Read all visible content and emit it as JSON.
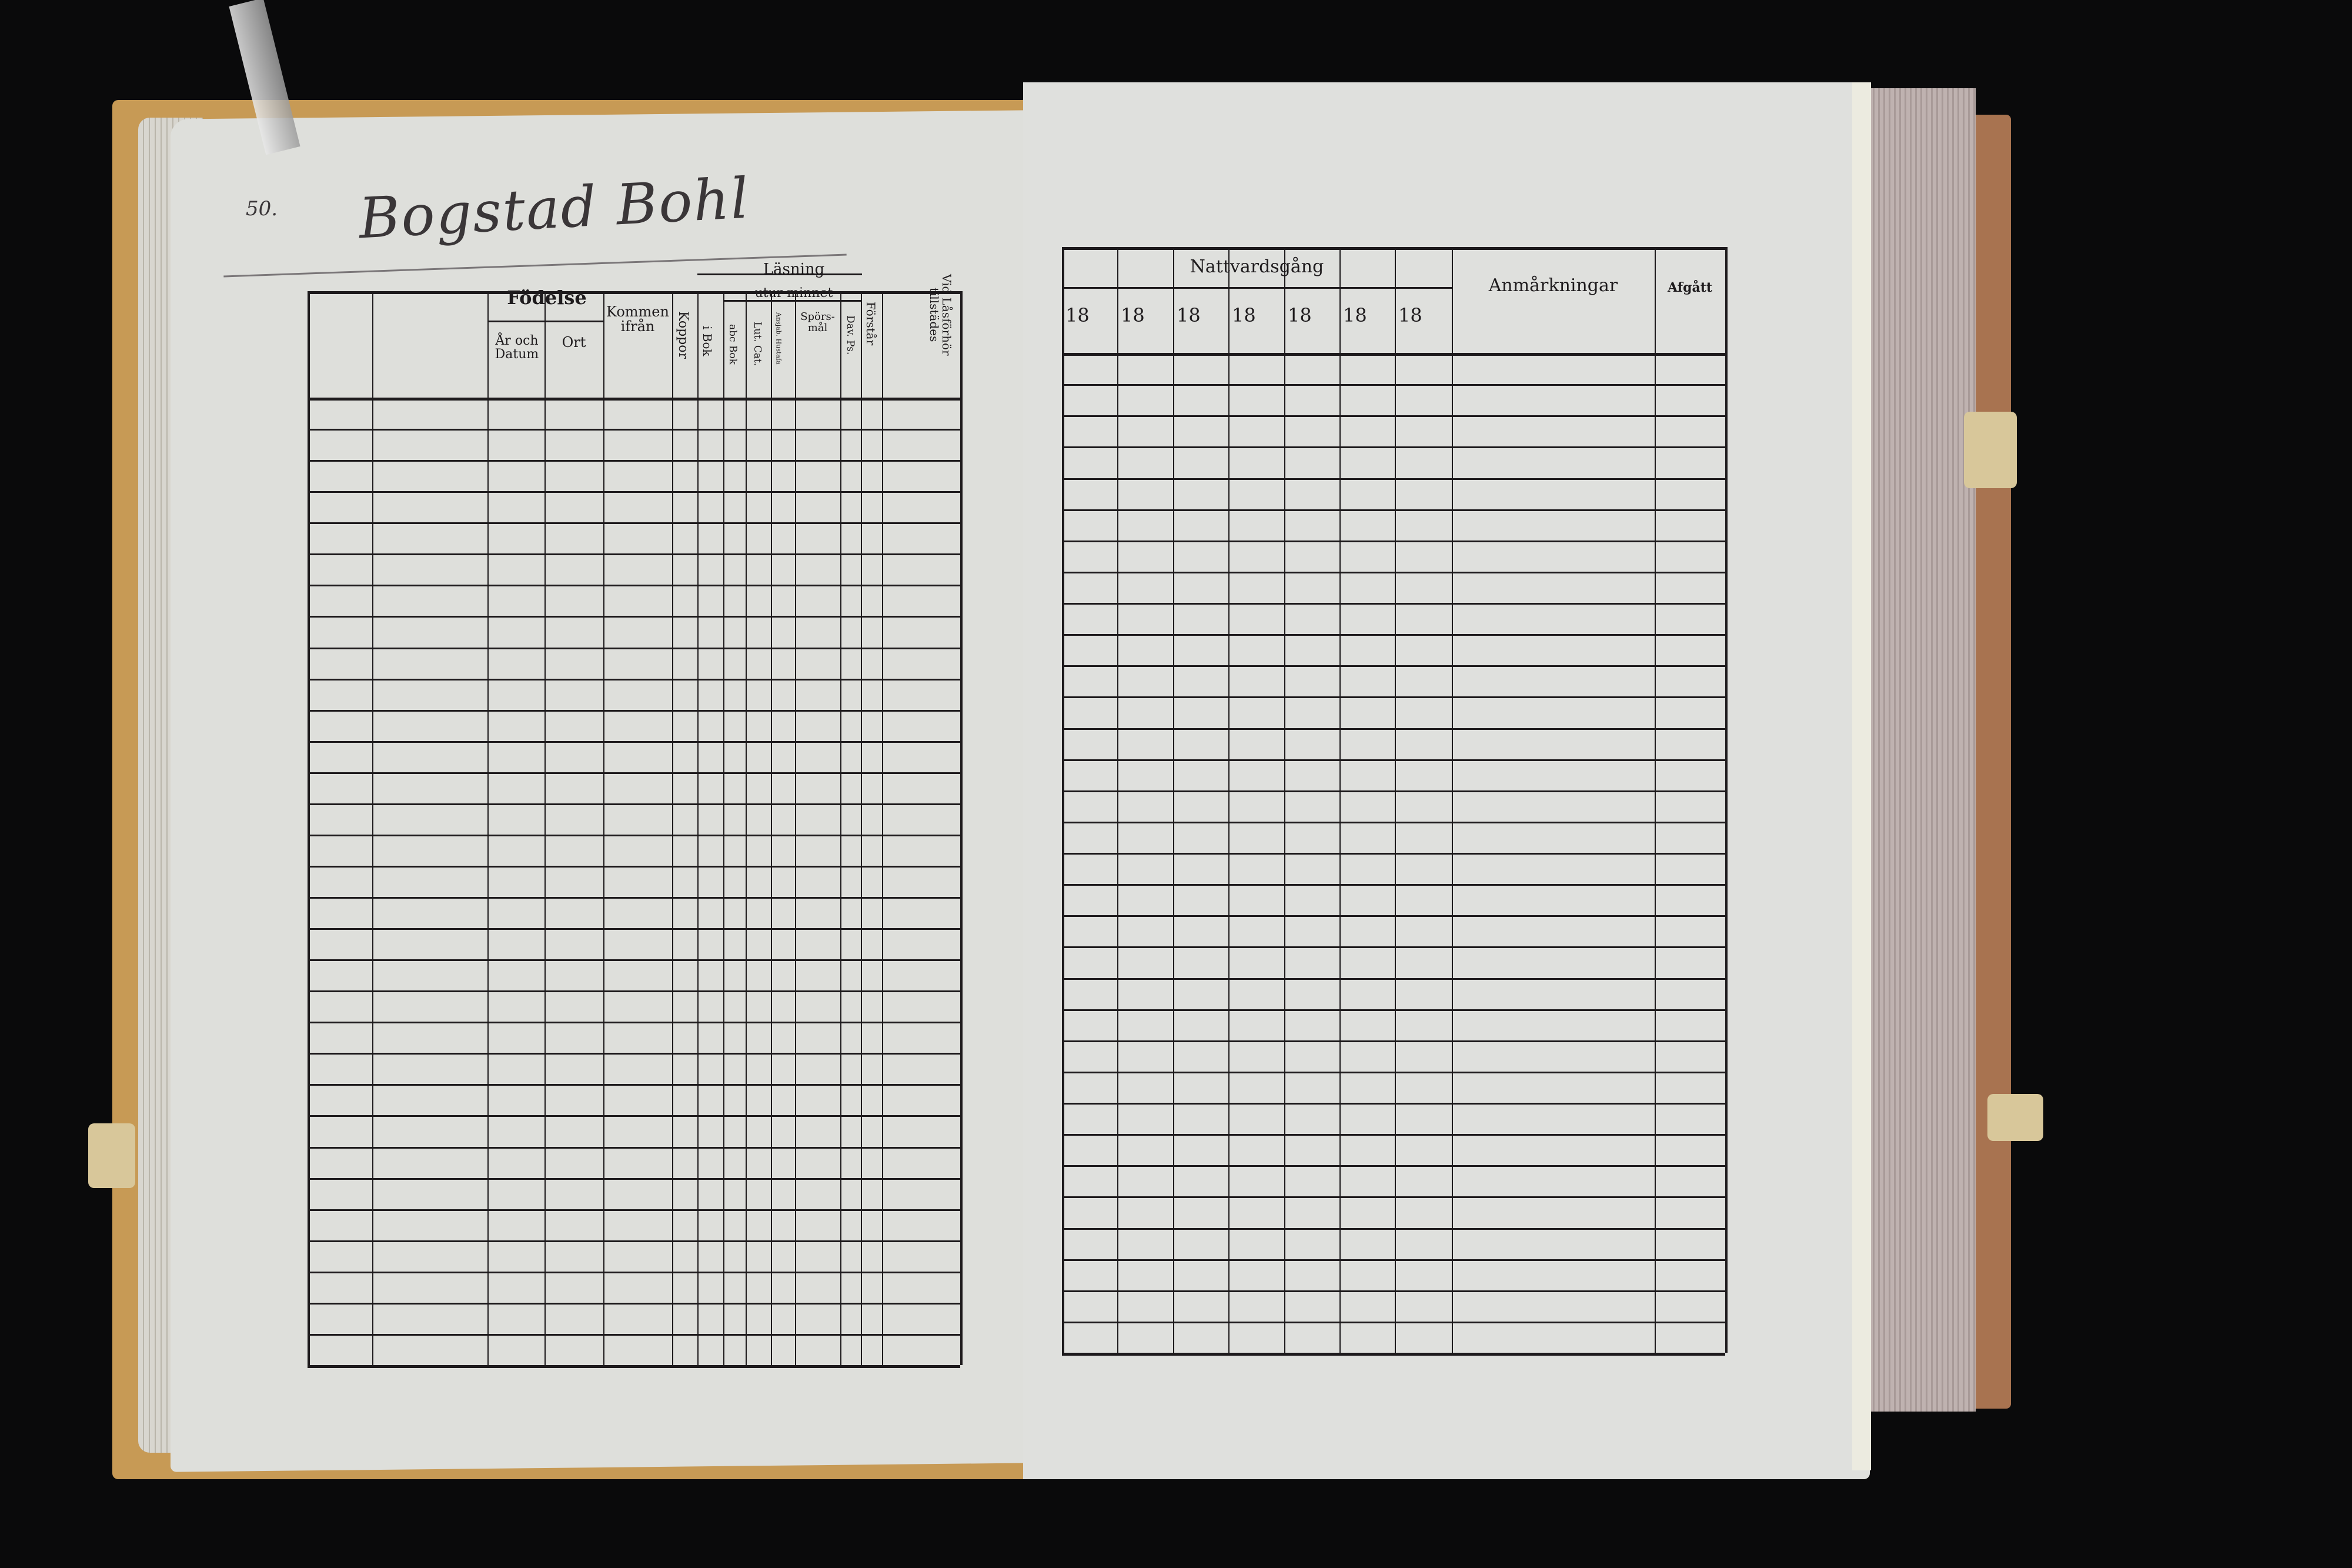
{
  "left_page": {
    "page_number": "50.",
    "handwritten_title": "Bogstad Bohl",
    "headers": {
      "fodelse": "Födelse",
      "ar_och_datum": "År och Datum",
      "ort": "Ort",
      "kommen_ifran": "Kommen ifrån",
      "koppor": "Koppor",
      "lasning": "Läsning",
      "utur_minnet": "utur minnet",
      "i_bok": "i Bok",
      "abc_bok": "abc Bok",
      "lut_cat": "Lut. Cat.",
      "anhang": "Ansjab. Hustafa",
      "sporsmal": "Spörs-mål",
      "dav_ps": "Dav. Ps.",
      "forstar": "Förstår",
      "vid_lasforhor": "Vid Låsförhör tillstädes"
    }
  },
  "right_page": {
    "headers": {
      "nattvardsgang": "Nattvardsgång",
      "years": [
        "18",
        "18",
        "18",
        "18",
        "18",
        "18",
        "18"
      ],
      "anmarkningar": "Anmårkningar",
      "afgatt": "Afgått"
    }
  }
}
